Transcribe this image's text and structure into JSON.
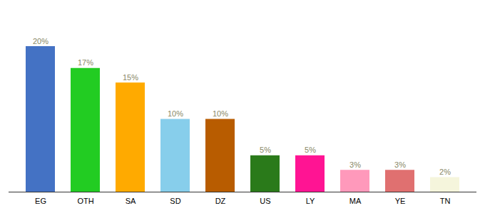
{
  "chart_data": {
    "type": "bar",
    "categories": [
      "EG",
      "OTH",
      "SA",
      "SD",
      "DZ",
      "US",
      "LY",
      "MA",
      "YE",
      "TN"
    ],
    "values": [
      20,
      17,
      15,
      10,
      10,
      5,
      5,
      3,
      3,
      2
    ],
    "value_labels": [
      "20%",
      "17%",
      "15%",
      "10%",
      "10%",
      "5%",
      "5%",
      "3%",
      "3%",
      "2%"
    ],
    "colors": [
      "#4472c4",
      "#22cc22",
      "#ffaa00",
      "#87ceeb",
      "#b85c00",
      "#2a7a1a",
      "#ff1493",
      "#ff99bb",
      "#e07070",
      "#f5f5dc"
    ],
    "ylim": [
      0,
      24
    ],
    "data_labels": true,
    "tick_labels": "x",
    "grid": false
  }
}
